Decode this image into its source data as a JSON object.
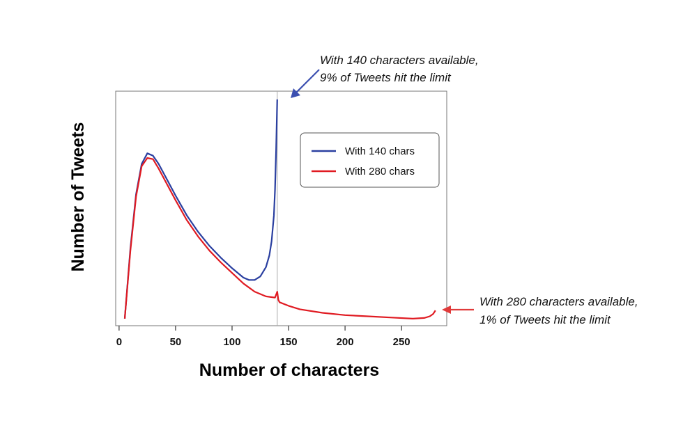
{
  "chart_data": {
    "type": "line",
    "xlabel": "Number of characters",
    "ylabel": "Number of Tweets",
    "xlim": [
      -3,
      290
    ],
    "ylim": [
      0,
      1.0
    ],
    "xticks": [
      0,
      50,
      100,
      150,
      200,
      250
    ],
    "grid": false,
    "legend_position": "top-right",
    "reference_line_x": 140,
    "series": [
      {
        "name": "With 140 chars",
        "color": "#2a3fa0",
        "x": [
          5,
          10,
          15,
          20,
          25,
          30,
          35,
          40,
          50,
          60,
          70,
          80,
          90,
          100,
          110,
          115,
          120,
          125,
          130,
          133,
          135,
          137,
          138,
          139,
          140
        ],
        "y": [
          0.03,
          0.33,
          0.56,
          0.69,
          0.735,
          0.725,
          0.69,
          0.645,
          0.555,
          0.47,
          0.4,
          0.34,
          0.29,
          0.245,
          0.205,
          0.195,
          0.195,
          0.21,
          0.25,
          0.3,
          0.36,
          0.47,
          0.58,
          0.75,
          0.965
        ]
      },
      {
        "name": "With 280 chars",
        "color": "#e01b22",
        "x": [
          5,
          10,
          15,
          20,
          25,
          30,
          35,
          40,
          50,
          60,
          70,
          80,
          90,
          100,
          110,
          120,
          130,
          138,
          140,
          141,
          142,
          150,
          160,
          180,
          200,
          220,
          240,
          260,
          270,
          275,
          278,
          280
        ],
        "y": [
          0.03,
          0.32,
          0.55,
          0.68,
          0.715,
          0.71,
          0.67,
          0.625,
          0.535,
          0.45,
          0.38,
          0.32,
          0.27,
          0.225,
          0.18,
          0.145,
          0.125,
          0.12,
          0.145,
          0.11,
          0.1,
          0.085,
          0.07,
          0.055,
          0.045,
          0.04,
          0.035,
          0.03,
          0.033,
          0.04,
          0.05,
          0.065
        ]
      }
    ],
    "annotations": [
      {
        "line1": "With 140 characters available,",
        "line2": "9% of Tweets hit the limit",
        "color": "#3b4fb0"
      },
      {
        "line1": "With 280 characters available,",
        "line2": "1% of Tweets hit the limit",
        "color": "#e03a3a"
      }
    ]
  }
}
